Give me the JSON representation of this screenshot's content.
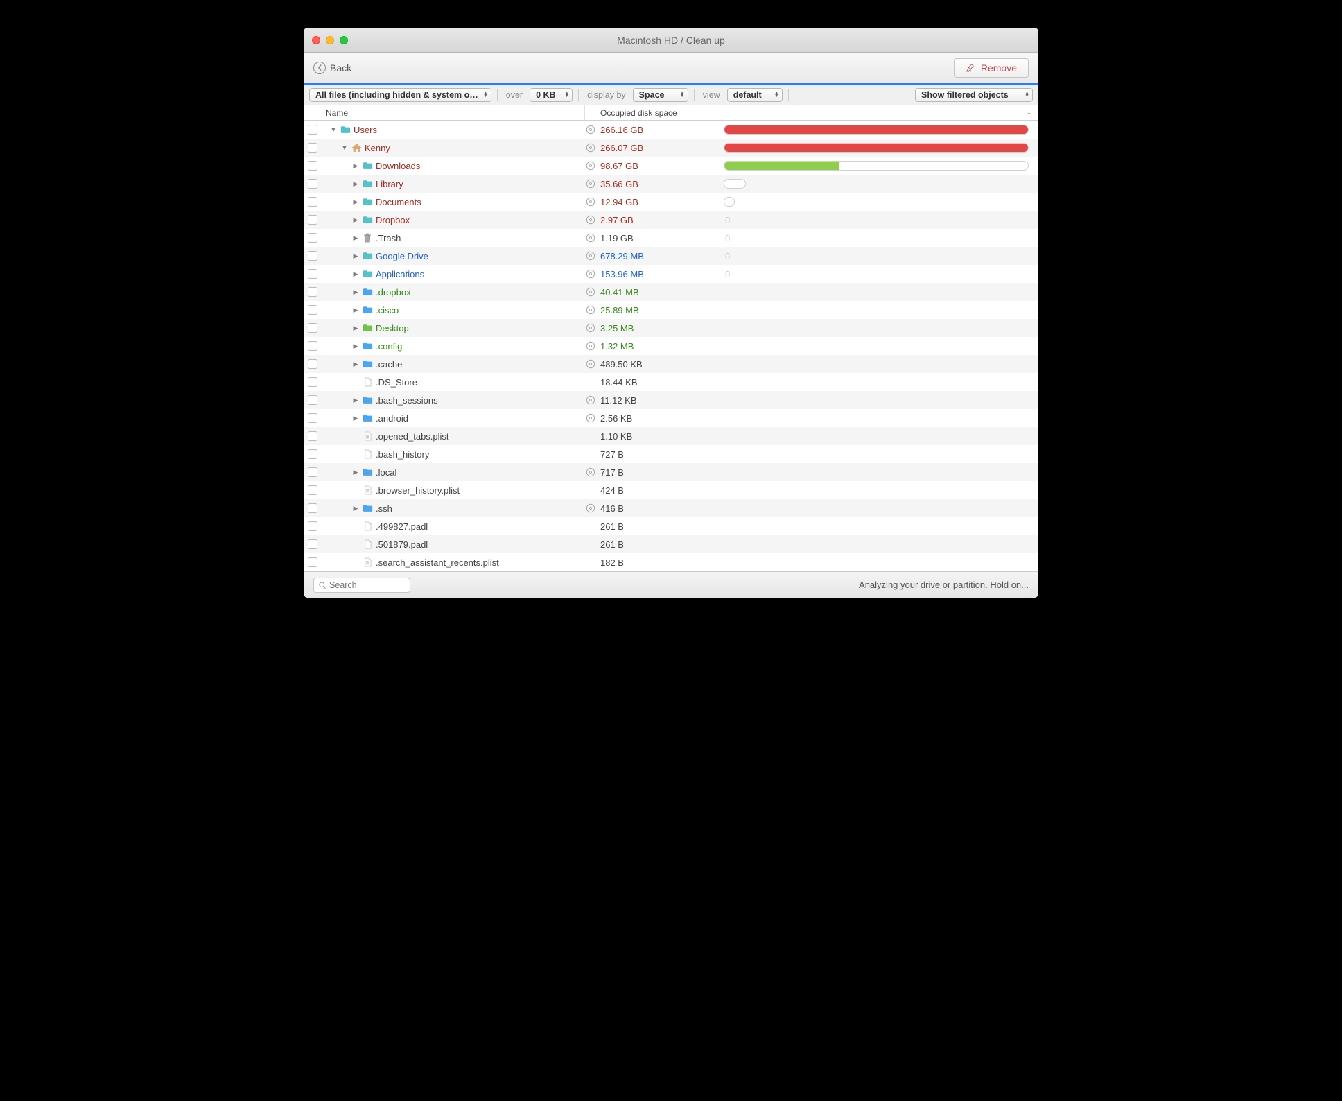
{
  "window": {
    "title": "Macintosh HD / Clean up"
  },
  "toolbar": {
    "back": "Back",
    "remove": "Remove"
  },
  "filterbar": {
    "filter": "All files (including hidden & system o…",
    "over_label": "over",
    "over_value": "0 KB",
    "display_label": "display by",
    "display_value": "Space",
    "view_label": "view",
    "view_value": "default",
    "show_filtered": "Show filtered objects"
  },
  "columns": {
    "name": "Name",
    "size": "Occupied disk space"
  },
  "search_placeholder": "Search",
  "status": "Analyzing your drive or partition. Hold on...",
  "colors": {
    "red_text": "#a82a1f",
    "blue_text": "#1e62d0",
    "green_text": "#3a8a1e",
    "gray_text": "#444444",
    "bar_red": "#e44545",
    "bar_green": "#8fce4d",
    "folder_blue": "#4aa6ee",
    "folder_teal": "#57c1c9",
    "folder_green": "#6fc24a",
    "folder_gray": "#b8b8b8",
    "file_gray": "#cccccc",
    "trash_gray": "#a8a8a8",
    "home_orange": "#e0a86a"
  },
  "rows": [
    {
      "depth": 0,
      "expand": "down",
      "icon": "folder",
      "icon_color": "folder_teal",
      "name": "Users",
      "size": "266.16 GB",
      "disk": true,
      "text_color": "red_text",
      "bar_pct": 100,
      "bar_color": "bar_red"
    },
    {
      "depth": 1,
      "expand": "down",
      "icon": "home",
      "icon_color": "home_orange",
      "name": "Kenny",
      "size": "266.07 GB",
      "disk": true,
      "text_color": "red_text",
      "bar_pct": 100,
      "bar_color": "bar_red"
    },
    {
      "depth": 2,
      "expand": "right",
      "icon": "folder",
      "icon_color": "folder_teal",
      "name": "Downloads",
      "size": "98.67 GB",
      "disk": true,
      "text_color": "red_text",
      "bar_pct": 38,
      "bar_color": "bar_green"
    },
    {
      "depth": 2,
      "expand": "right",
      "icon": "folder",
      "icon_color": "folder_teal",
      "name": "Library",
      "size": "35.66 GB",
      "disk": true,
      "text_color": "red_text",
      "bar_pct": 8,
      "bar_empty": true
    },
    {
      "depth": 2,
      "expand": "right",
      "icon": "folder",
      "icon_color": "folder_teal",
      "name": "Documents",
      "size": "12.94 GB",
      "disk": true,
      "text_color": "red_text",
      "bar_pct": 4,
      "bar_empty": true
    },
    {
      "depth": 2,
      "expand": "right",
      "icon": "folder",
      "icon_color": "folder_teal",
      "name": "Dropbox",
      "size": "2.97 GB",
      "disk": true,
      "text_color": "red_text",
      "bar_zero": true
    },
    {
      "depth": 2,
      "expand": "right",
      "icon": "trash",
      "icon_color": "trash_gray",
      "name": ".Trash",
      "size": "1.19 GB",
      "disk": true,
      "text_color": "gray_text",
      "bar_zero": true
    },
    {
      "depth": 2,
      "expand": "right",
      "icon": "folder",
      "icon_color": "folder_teal",
      "name": "Google Drive",
      "size": "678.29 MB",
      "disk": true,
      "text_color": "blue_text",
      "bar_zero": true
    },
    {
      "depth": 2,
      "expand": "right",
      "icon": "folder",
      "icon_color": "folder_teal",
      "name": "Applications",
      "size": "153.96 MB",
      "disk": true,
      "text_color": "blue_text",
      "bar_zero": true
    },
    {
      "depth": 2,
      "expand": "right",
      "icon": "folder",
      "icon_color": "folder_blue",
      "name": ".dropbox",
      "size": "40.41 MB",
      "disk": true,
      "text_color": "green_text"
    },
    {
      "depth": 2,
      "expand": "right",
      "icon": "folder",
      "icon_color": "folder_blue",
      "name": ".cisco",
      "size": "25.89 MB",
      "disk": true,
      "text_color": "green_text"
    },
    {
      "depth": 2,
      "expand": "right",
      "icon": "folder",
      "icon_color": "folder_green",
      "name": "Desktop",
      "size": "3.25 MB",
      "disk": true,
      "text_color": "green_text"
    },
    {
      "depth": 2,
      "expand": "right",
      "icon": "folder",
      "icon_color": "folder_blue",
      "name": ".config",
      "size": "1.32 MB",
      "disk": true,
      "text_color": "green_text"
    },
    {
      "depth": 2,
      "expand": "right",
      "icon": "folder",
      "icon_color": "folder_blue",
      "name": ".cache",
      "size": "489.50 KB",
      "disk": true,
      "text_color": "gray_text"
    },
    {
      "depth": 2,
      "expand": "none",
      "icon": "file",
      "icon_color": "file_gray",
      "name": ".DS_Store",
      "size": "18.44 KB",
      "disk": false,
      "text_color": "gray_text"
    },
    {
      "depth": 2,
      "expand": "right",
      "icon": "folder",
      "icon_color": "folder_blue",
      "name": ".bash_sessions",
      "size": "11.12 KB",
      "disk": true,
      "text_color": "gray_text"
    },
    {
      "depth": 2,
      "expand": "right",
      "icon": "folder",
      "icon_color": "folder_blue",
      "name": ".android",
      "size": "2.56 KB",
      "disk": true,
      "text_color": "gray_text"
    },
    {
      "depth": 2,
      "expand": "none",
      "icon": "plist",
      "icon_color": "file_gray",
      "name": ".opened_tabs.plist",
      "size": "1.10 KB",
      "disk": false,
      "text_color": "gray_text"
    },
    {
      "depth": 2,
      "expand": "none",
      "icon": "file",
      "icon_color": "file_gray",
      "name": ".bash_history",
      "size": "727 B",
      "disk": false,
      "text_color": "gray_text"
    },
    {
      "depth": 2,
      "expand": "right",
      "icon": "folder",
      "icon_color": "folder_blue",
      "name": ".local",
      "size": "717 B",
      "disk": true,
      "text_color": "gray_text"
    },
    {
      "depth": 2,
      "expand": "none",
      "icon": "plist",
      "icon_color": "file_gray",
      "name": ".browser_history.plist",
      "size": "424 B",
      "disk": false,
      "text_color": "gray_text"
    },
    {
      "depth": 2,
      "expand": "right",
      "icon": "folder",
      "icon_color": "folder_blue",
      "name": ".ssh",
      "size": "416 B",
      "disk": true,
      "text_color": "gray_text"
    },
    {
      "depth": 2,
      "expand": "none",
      "icon": "file",
      "icon_color": "file_gray",
      "name": ".499827.padl",
      "size": "261 B",
      "disk": false,
      "text_color": "gray_text"
    },
    {
      "depth": 2,
      "expand": "none",
      "icon": "file",
      "icon_color": "file_gray",
      "name": ".501879.padl",
      "size": "261 B",
      "disk": false,
      "text_color": "gray_text"
    },
    {
      "depth": 2,
      "expand": "none",
      "icon": "plist",
      "icon_color": "file_gray",
      "name": ".search_assistant_recents.plist",
      "size": "182 B",
      "disk": false,
      "text_color": "gray_text"
    }
  ]
}
